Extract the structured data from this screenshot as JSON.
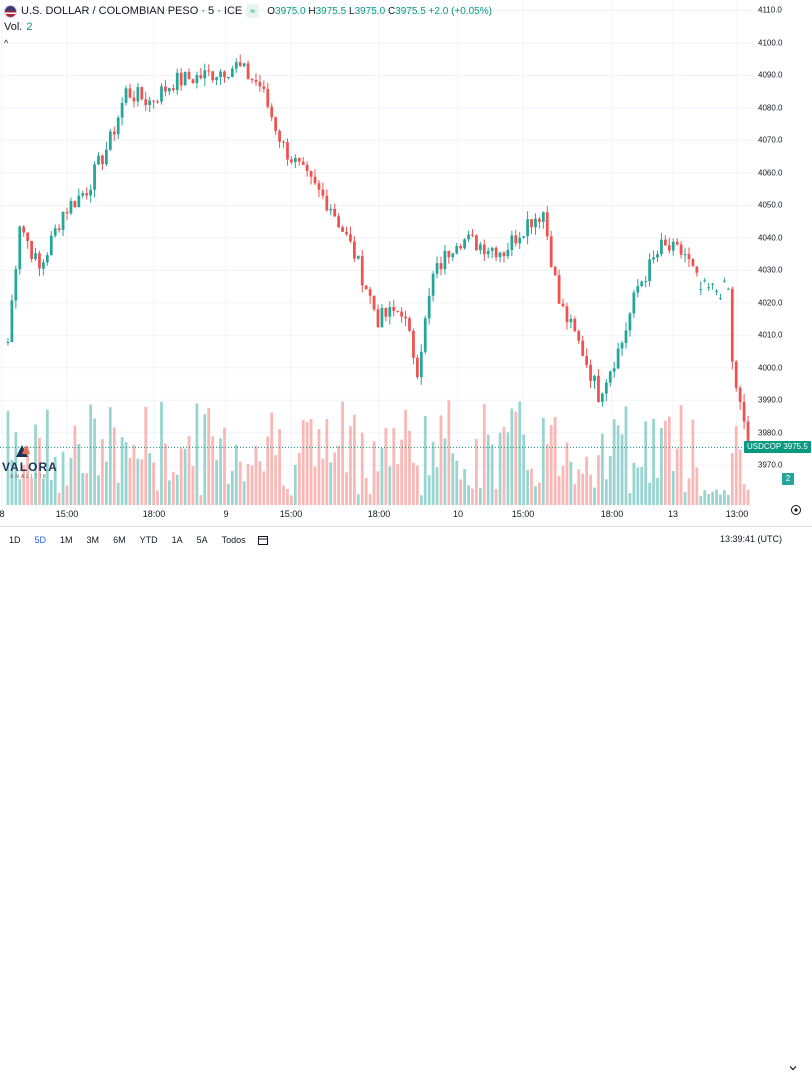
{
  "legend": {
    "symbol_title": "U.S. DOLLAR / COLOMBIAN PESO · 5 · ICE",
    "badge": "≈",
    "o_label": "O",
    "o_value": "3975.0",
    "h_label": "H",
    "h_value": "3975.5",
    "l_label": "L",
    "l_value": "3975.0",
    "c_label": "C",
    "c_value": "3975.5",
    "change": "+2.0 (+0.05%)",
    "vol_label": "Vol.",
    "vol_value": "2",
    "collapse_glyph": "^"
  },
  "logo": {
    "name": "VALORA",
    "sub": "ANALITIK"
  },
  "last_price_tag": {
    "label": "USDCOP",
    "value": "3975.5"
  },
  "volume_tag": "2",
  "bottom_bar": {
    "ranges": [
      "1D",
      "5D",
      "1M",
      "3M",
      "6M",
      "YTD",
      "1A",
      "5A",
      "Todos"
    ],
    "active": "5D",
    "clock": "13:39:41 (UTC)"
  },
  "colors": {
    "up": "#26a69a",
    "down": "#ef5350",
    "grid": "#f0f3fa",
    "last": "#089981"
  },
  "chart_data": {
    "type": "candlestick",
    "symbol": "USDCOP",
    "y_ticks": [
      3970,
      3980,
      3990,
      4000,
      4010,
      4020,
      4030,
      4040,
      4050,
      4060,
      4070,
      4080,
      4090,
      4100,
      4110
    ],
    "y_tick_labels": [
      "3970.0",
      "3980.0",
      "3990.0",
      "4000.0",
      "4010.0",
      "4020.0",
      "4030.0",
      "4040.0",
      "4050.0",
      "4060.0",
      "4070.0",
      "4080.0",
      "4090.0",
      "4100.0",
      "4110.0"
    ],
    "ylim": [
      3963,
      4112
    ],
    "x_ticks": [
      "8",
      "15:00",
      "18:00",
      "9",
      "15:00",
      "18:00",
      "10",
      "15:00",
      "18:00",
      "13",
      "13:00"
    ],
    "last_price": 3975.5,
    "grid": true,
    "close_path": [
      {
        "bar": 0,
        "close": 4008
      },
      {
        "bar": 3,
        "close": 4045
      },
      {
        "bar": 8,
        "close": 4030
      },
      {
        "bar": 14,
        "close": 4048
      },
      {
        "bar": 20,
        "close": 4055
      },
      {
        "bar": 26,
        "close": 4070
      },
      {
        "bar": 30,
        "close": 4085
      },
      {
        "bar": 36,
        "close": 4082
      },
      {
        "bar": 42,
        "close": 4088
      },
      {
        "bar": 50,
        "close": 4090
      },
      {
        "bar": 58,
        "close": 4093
      },
      {
        "bar": 64,
        "close": 4087
      },
      {
        "bar": 70,
        "close": 4068
      },
      {
        "bar": 76,
        "close": 4058
      },
      {
        "bar": 82,
        "close": 4050
      },
      {
        "bar": 88,
        "close": 4035
      },
      {
        "bar": 94,
        "close": 4015
      },
      {
        "bar": 100,
        "close": 4018
      },
      {
        "bar": 104,
        "close": 4000
      },
      {
        "bar": 108,
        "close": 4028
      },
      {
        "bar": 114,
        "close": 4040
      },
      {
        "bar": 120,
        "close": 4038
      },
      {
        "bar": 126,
        "close": 4036
      },
      {
        "bar": 132,
        "close": 4045
      },
      {
        "bar": 136,
        "close": 4048
      },
      {
        "bar": 140,
        "close": 4020
      },
      {
        "bar": 146,
        "close": 4005
      },
      {
        "bar": 150,
        "close": 3992
      },
      {
        "bar": 156,
        "close": 4008
      },
      {
        "bar": 160,
        "close": 4025
      },
      {
        "bar": 166,
        "close": 4037
      },
      {
        "bar": 172,
        "close": 4035
      },
      {
        "bar": 176,
        "close": 4024
      },
      {
        "bar": 183,
        "close": 4024
      },
      {
        "bar": 184,
        "close": 4001
      },
      {
        "bar": 186,
        "close": 3988
      },
      {
        "bar": 188,
        "close": 3975.5
      }
    ],
    "volume_range": [
      0,
      6
    ]
  }
}
